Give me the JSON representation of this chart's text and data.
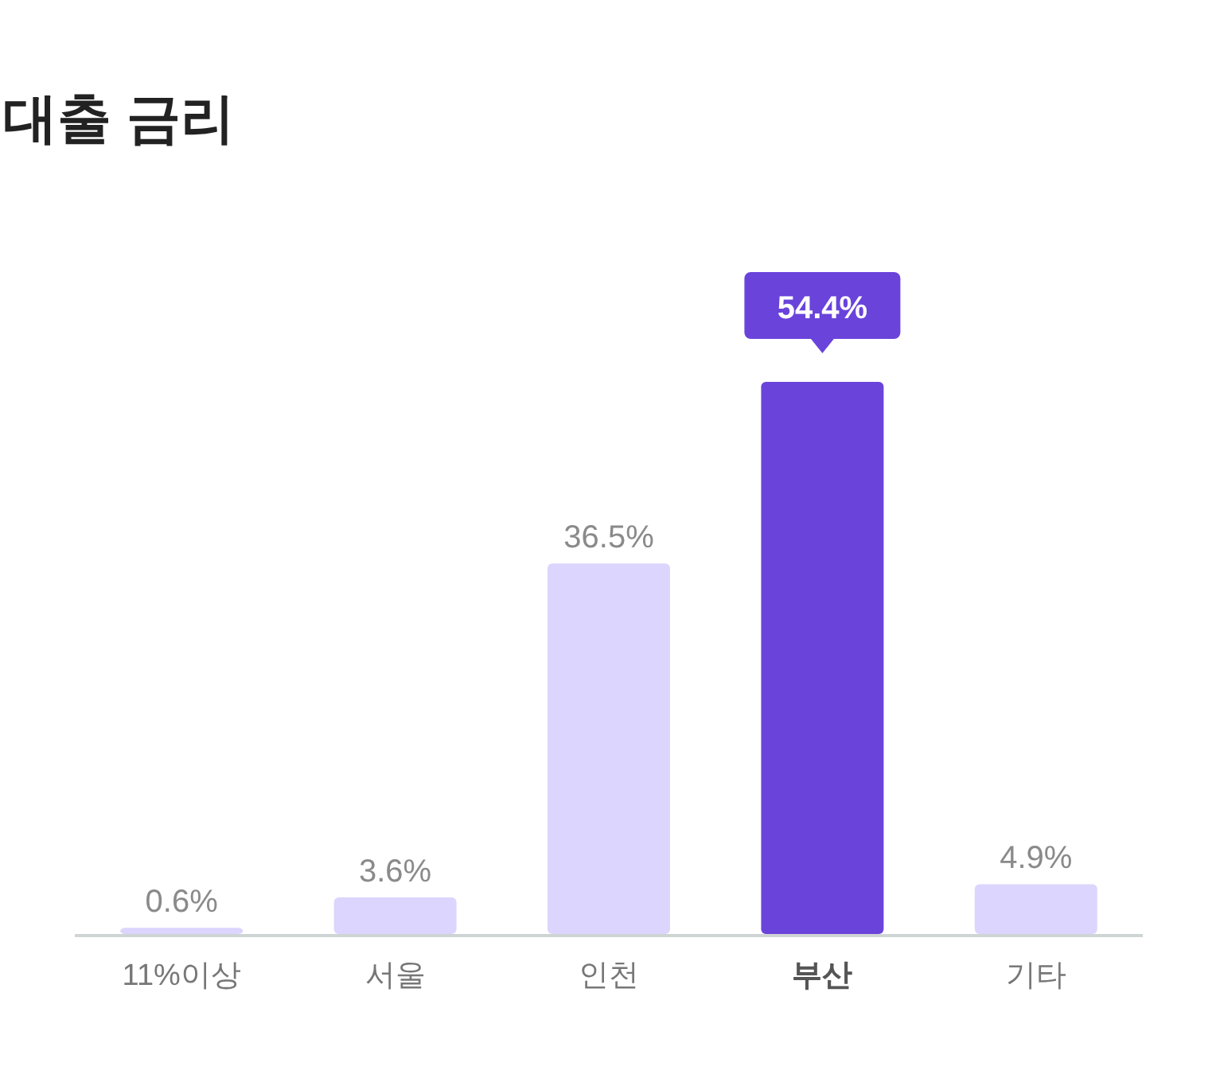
{
  "chart_data": {
    "type": "bar",
    "title": "대출 금리",
    "categories": [
      "11%이상",
      "서울",
      "인천",
      "부산",
      "기타"
    ],
    "values": [
      0.6,
      3.6,
      36.5,
      54.4,
      4.9
    ],
    "colors": [
      "#dcd5fd",
      "#dcd5fd",
      "#dcd5fd",
      "#6a43db",
      "#dcd5fd"
    ],
    "value_labels": [
      "0.6%",
      "3.6%",
      "36.5%",
      "54.4%",
      "4.9%"
    ]
  }
}
